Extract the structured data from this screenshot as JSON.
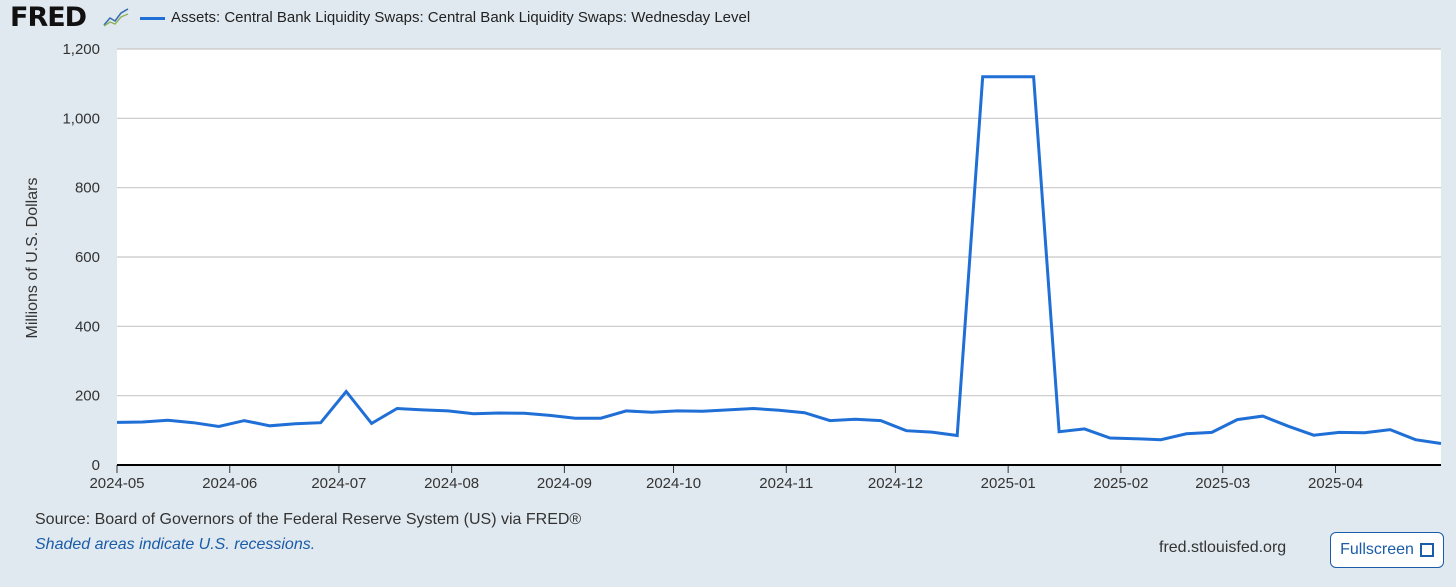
{
  "header": {
    "logo_text": "FRED",
    "logo_icon": "chart-line-icon"
  },
  "chart_data": {
    "type": "line",
    "title": "",
    "legend": [
      "Assets: Central Bank Liquidity Swaps: Central Bank Liquidity Swaps: Wednesday Level"
    ],
    "ylabel": "Millions of U.S. Dollars",
    "xlabel": "",
    "ylim": [
      0,
      1200
    ],
    "yticks": [
      0,
      200,
      400,
      600,
      800,
      1000,
      1200
    ],
    "ytick_labels": [
      "0",
      "200",
      "400",
      "600",
      "800",
      "1,000",
      "1,200"
    ],
    "xtick_labels": [
      "2024-05",
      "2024-06",
      "2024-07",
      "2024-08",
      "2024-09",
      "2024-10",
      "2024-11",
      "2024-12",
      "2025-01",
      "2025-02",
      "2025-03",
      "2025-04"
    ],
    "xtick_dates": [
      "2024-05-01",
      "2024-06-01",
      "2024-07-01",
      "2024-08-01",
      "2024-09-01",
      "2024-10-01",
      "2024-11-01",
      "2024-12-01",
      "2025-01-01",
      "2025-02-01",
      "2025-03-01",
      "2025-04-01"
    ],
    "xlim": [
      "2024-05-01",
      "2025-04-30"
    ],
    "grid": true,
    "color": "#1f6fd6",
    "series": [
      {
        "name": "Assets: Central Bank Liquidity Swaps: Central Bank Liquidity Swaps: Wednesday Level",
        "dates": [
          "2024-05-01",
          "2024-05-08",
          "2024-05-15",
          "2024-05-22",
          "2024-05-29",
          "2024-06-05",
          "2024-06-12",
          "2024-06-19",
          "2024-06-26",
          "2024-07-03",
          "2024-07-10",
          "2024-07-17",
          "2024-07-24",
          "2024-07-31",
          "2024-08-07",
          "2024-08-14",
          "2024-08-21",
          "2024-08-28",
          "2024-09-04",
          "2024-09-11",
          "2024-09-18",
          "2024-09-25",
          "2024-10-02",
          "2024-10-09",
          "2024-10-16",
          "2024-10-23",
          "2024-10-30",
          "2024-11-06",
          "2024-11-13",
          "2024-11-20",
          "2024-11-27",
          "2024-12-04",
          "2024-12-11",
          "2024-12-18",
          "2024-12-25",
          "2025-01-01",
          "2025-01-08",
          "2025-01-15",
          "2025-01-22",
          "2025-01-29",
          "2025-02-05",
          "2025-02-12",
          "2025-02-19",
          "2025-02-26",
          "2025-03-05",
          "2025-03-12",
          "2025-03-19",
          "2025-03-26",
          "2025-04-02",
          "2025-04-09",
          "2025-04-16",
          "2025-04-23",
          "2025-04-30"
        ],
        "values": [
          123,
          124,
          129,
          122,
          111,
          128,
          113,
          119,
          122,
          212,
          120,
          163,
          159,
          156,
          148,
          150,
          149,
          143,
          135,
          135,
          156,
          152,
          156,
          155,
          159,
          163,
          158,
          151,
          128,
          132,
          128,
          99,
          95,
          85,
          1120,
          1120,
          1120,
          96,
          104,
          78,
          76,
          73,
          90,
          94,
          131,
          141,
          112,
          86,
          94,
          93,
          102,
          73,
          62
        ]
      }
    ]
  },
  "footer": {
    "source": "Source: Board of Governors of the Federal Reserve System (US) via FRED®",
    "note": "Shaded areas indicate U.S. recessions.",
    "url": "fred.stlouisfed.org",
    "fullscreen_label": "Fullscreen"
  }
}
